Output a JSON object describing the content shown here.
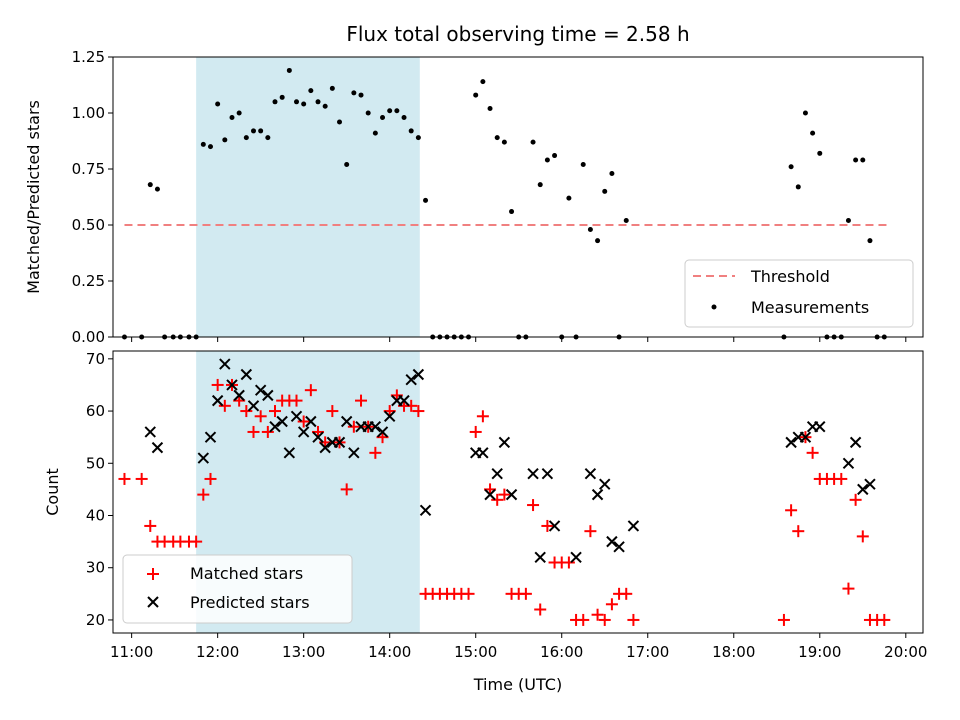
{
  "chart_data": [
    {
      "type": "scatter",
      "title": "Flux total observing time = 2.58 h",
      "ylabel": "Matched/Predicted stars",
      "xlabel": "",
      "xlim": [
        "10:47",
        "20:12"
      ],
      "ylim": [
        0,
        1.25
      ],
      "yticks": [
        0.0,
        0.25,
        0.5,
        0.75,
        1.0,
        1.25
      ],
      "ytick_labels": [
        "0.00",
        "0.25",
        "0.50",
        "0.75",
        "1.00",
        "1.25"
      ],
      "shaded_interval": [
        "11:45",
        "14:21"
      ],
      "shade_color": "#add8e6",
      "legend_position": "lower right",
      "threshold": {
        "name": "Threshold",
        "value": 0.5,
        "x_range": [
          "10:55",
          "19:47"
        ],
        "color": "#f08080",
        "style": "dashed"
      },
      "series": [
        {
          "name": "Measurements",
          "color": "#000000",
          "marker": "dot",
          "points": [
            [
              "10:55",
              0
            ],
            [
              "11:07",
              0
            ],
            [
              "11:13",
              0.68
            ],
            [
              "11:18",
              0.66
            ],
            [
              "11:23",
              0
            ],
            [
              "11:29",
              0
            ],
            [
              "11:34",
              0
            ],
            [
              "11:40",
              0
            ],
            [
              "11:45",
              0
            ],
            [
              "11:50",
              0.86
            ],
            [
              "11:55",
              0.85
            ],
            [
              "12:00",
              1.04
            ],
            [
              "12:05",
              0.88
            ],
            [
              "12:10",
              0.98
            ],
            [
              "12:15",
              1.0
            ],
            [
              "12:20",
              0.89
            ],
            [
              "12:25",
              0.92
            ],
            [
              "12:30",
              0.92
            ],
            [
              "12:35",
              0.89
            ],
            [
              "12:40",
              1.05
            ],
            [
              "12:45",
              1.07
            ],
            [
              "12:50",
              1.19
            ],
            [
              "12:55",
              1.05
            ],
            [
              "13:00",
              1.04
            ],
            [
              "13:05",
              1.1
            ],
            [
              "13:10",
              1.05
            ],
            [
              "13:15",
              1.03
            ],
            [
              "13:20",
              1.11
            ],
            [
              "13:25",
              0.96
            ],
            [
              "13:30",
              0.77
            ],
            [
              "13:35",
              1.09
            ],
            [
              "13:40",
              1.08
            ],
            [
              "13:45",
              1.0
            ],
            [
              "13:50",
              0.91
            ],
            [
              "13:55",
              0.98
            ],
            [
              "14:00",
              1.01
            ],
            [
              "14:05",
              1.01
            ],
            [
              "14:10",
              0.98
            ],
            [
              "14:15",
              0.92
            ],
            [
              "14:20",
              0.89
            ],
            [
              "14:25",
              0.61
            ],
            [
              "14:30",
              0
            ],
            [
              "14:35",
              0
            ],
            [
              "14:40",
              0
            ],
            [
              "14:45",
              0
            ],
            [
              "14:50",
              0
            ],
            [
              "14:55",
              0
            ],
            [
              "15:00",
              1.08
            ],
            [
              "15:05",
              1.14
            ],
            [
              "15:10",
              1.02
            ],
            [
              "15:15",
              0.89
            ],
            [
              "15:20",
              0.87
            ],
            [
              "15:25",
              0.56
            ],
            [
              "15:30",
              0
            ],
            [
              "15:35",
              0
            ],
            [
              "15:40",
              0.87
            ],
            [
              "15:45",
              0.68
            ],
            [
              "15:50",
              0.79
            ],
            [
              "15:55",
              0.81
            ],
            [
              "16:00",
              0
            ],
            [
              "16:05",
              0.62
            ],
            [
              "16:10",
              0
            ],
            [
              "16:15",
              0.77
            ],
            [
              "16:20",
              0.48
            ],
            [
              "16:25",
              0.43
            ],
            [
              "16:30",
              0.65
            ],
            [
              "16:35",
              0.73
            ],
            [
              "16:40",
              0
            ],
            [
              "16:45",
              0.52
            ],
            [
              "18:35",
              0
            ],
            [
              "18:40",
              0.76
            ],
            [
              "18:45",
              0.67
            ],
            [
              "18:50",
              1.0
            ],
            [
              "18:55",
              0.91
            ],
            [
              "19:00",
              0.82
            ],
            [
              "19:05",
              0
            ],
            [
              "19:10",
              0
            ],
            [
              "19:15",
              0
            ],
            [
              "19:20",
              0.52
            ],
            [
              "19:25",
              0.79
            ],
            [
              "19:30",
              0.79
            ],
            [
              "19:35",
              0.43
            ],
            [
              "19:40",
              0
            ],
            [
              "19:45",
              0
            ]
          ]
        }
      ],
      "x_tick_labels": []
    },
    {
      "type": "scatter",
      "title": "",
      "ylabel": "Count",
      "xlabel": "Time (UTC)",
      "xlim": [
        "10:47",
        "20:12"
      ],
      "ylim": [
        17.5,
        71.5
      ],
      "yticks": [
        20,
        30,
        40,
        50,
        60,
        70
      ],
      "ytick_labels": [
        "20",
        "30",
        "40",
        "50",
        "60",
        "70"
      ],
      "x_ticks": [
        "11:00",
        "12:00",
        "13:00",
        "14:00",
        "15:00",
        "16:00",
        "17:00",
        "18:00",
        "19:00",
        "20:00"
      ],
      "x_tick_labels": [
        "11:00",
        "12:00",
        "13:00",
        "14:00",
        "15:00",
        "16:00",
        "17:00",
        "18:00",
        "19:00",
        "20:00"
      ],
      "shaded_interval": [
        "11:45",
        "14:21"
      ],
      "shade_color": "#add8e6",
      "legend_position": "lower left",
      "series": [
        {
          "name": "Matched stars",
          "color": "#ff0000",
          "marker": "plus",
          "points": [
            [
              "10:55",
              47
            ],
            [
              "11:07",
              47
            ],
            [
              "11:13",
              38
            ],
            [
              "11:18",
              35
            ],
            [
              "11:23",
              35
            ],
            [
              "11:29",
              35
            ],
            [
              "11:34",
              35
            ],
            [
              "11:40",
              35
            ],
            [
              "11:45",
              35
            ],
            [
              "11:50",
              44
            ],
            [
              "11:55",
              47
            ],
            [
              "12:00",
              65
            ],
            [
              "12:05",
              61
            ],
            [
              "12:10",
              65
            ],
            [
              "12:15",
              62
            ],
            [
              "12:20",
              60
            ],
            [
              "12:25",
              56
            ],
            [
              "12:30",
              59
            ],
            [
              "12:35",
              56
            ],
            [
              "12:40",
              60
            ],
            [
              "12:45",
              62
            ],
            [
              "12:50",
              62
            ],
            [
              "12:55",
              62
            ],
            [
              "13:00",
              58
            ],
            [
              "13:05",
              64
            ],
            [
              "13:10",
              56
            ],
            [
              "13:15",
              54
            ],
            [
              "13:20",
              60
            ],
            [
              "13:25",
              54
            ],
            [
              "13:30",
              45
            ],
            [
              "13:35",
              57
            ],
            [
              "13:40",
              62
            ],
            [
              "13:45",
              57
            ],
            [
              "13:50",
              52
            ],
            [
              "13:55",
              55
            ],
            [
              "14:00",
              60
            ],
            [
              "14:05",
              63
            ],
            [
              "14:10",
              61
            ],
            [
              "14:15",
              61
            ],
            [
              "14:20",
              60
            ],
            [
              "14:25",
              25
            ],
            [
              "14:30",
              25
            ],
            [
              "14:35",
              25
            ],
            [
              "14:40",
              25
            ],
            [
              "14:45",
              25
            ],
            [
              "14:50",
              25
            ],
            [
              "14:55",
              25
            ],
            [
              "15:00",
              56
            ],
            [
              "15:05",
              59
            ],
            [
              "15:10",
              45
            ],
            [
              "15:15",
              43
            ],
            [
              "15:20",
              44
            ],
            [
              "15:25",
              25
            ],
            [
              "15:30",
              25
            ],
            [
              "15:35",
              25
            ],
            [
              "15:40",
              42
            ],
            [
              "15:45",
              22
            ],
            [
              "15:50",
              38
            ],
            [
              "15:55",
              31
            ],
            [
              "16:00",
              31
            ],
            [
              "16:05",
              31
            ],
            [
              "16:10",
              20
            ],
            [
              "16:15",
              20
            ],
            [
              "16:20",
              37
            ],
            [
              "16:25",
              21
            ],
            [
              "16:30",
              20
            ],
            [
              "16:35",
              23
            ],
            [
              "16:40",
              25
            ],
            [
              "16:45",
              25
            ],
            [
              "16:50",
              20
            ],
            [
              "18:35",
              20
            ],
            [
              "18:40",
              41
            ],
            [
              "18:45",
              37
            ],
            [
              "18:50",
              55
            ],
            [
              "18:55",
              52
            ],
            [
              "19:00",
              47
            ],
            [
              "19:05",
              47
            ],
            [
              "19:10",
              47
            ],
            [
              "19:15",
              47
            ],
            [
              "19:20",
              26
            ],
            [
              "19:25",
              43
            ],
            [
              "19:30",
              36
            ],
            [
              "19:35",
              20
            ],
            [
              "19:40",
              20
            ],
            [
              "19:45",
              20
            ]
          ]
        },
        {
          "name": "Predicted stars",
          "color": "#000000",
          "marker": "x",
          "points": [
            [
              "11:13",
              56
            ],
            [
              "11:18",
              53
            ],
            [
              "11:50",
              51
            ],
            [
              "11:55",
              55
            ],
            [
              "12:00",
              62
            ],
            [
              "12:05",
              69
            ],
            [
              "12:10",
              65
            ],
            [
              "12:15",
              63
            ],
            [
              "12:20",
              67
            ],
            [
              "12:25",
              61
            ],
            [
              "12:30",
              64
            ],
            [
              "12:35",
              63
            ],
            [
              "12:40",
              57
            ],
            [
              "12:45",
              58
            ],
            [
              "12:50",
              52
            ],
            [
              "12:55",
              59
            ],
            [
              "13:00",
              56
            ],
            [
              "13:05",
              58
            ],
            [
              "13:10",
              55
            ],
            [
              "13:15",
              53
            ],
            [
              "13:20",
              54
            ],
            [
              "13:25",
              54
            ],
            [
              "13:30",
              58
            ],
            [
              "13:35",
              52
            ],
            [
              "13:40",
              57
            ],
            [
              "13:45",
              57
            ],
            [
              "13:50",
              57
            ],
            [
              "13:55",
              56
            ],
            [
              "14:00",
              59
            ],
            [
              "14:05",
              62
            ],
            [
              "14:10",
              62
            ],
            [
              "14:15",
              66
            ],
            [
              "14:20",
              67
            ],
            [
              "14:25",
              41
            ],
            [
              "15:00",
              52
            ],
            [
              "15:05",
              52
            ],
            [
              "15:10",
              44
            ],
            [
              "15:15",
              48
            ],
            [
              "15:20",
              54
            ],
            [
              "15:25",
              44
            ],
            [
              "15:40",
              48
            ],
            [
              "15:45",
              32
            ],
            [
              "15:50",
              48
            ],
            [
              "15:55",
              38
            ],
            [
              "16:10",
              32
            ],
            [
              "16:20",
              48
            ],
            [
              "16:25",
              44
            ],
            [
              "16:30",
              46
            ],
            [
              "16:35",
              35
            ],
            [
              "16:40",
              34
            ],
            [
              "16:50",
              38
            ],
            [
              "18:40",
              54
            ],
            [
              "18:45",
              55
            ],
            [
              "18:50",
              55
            ],
            [
              "18:55",
              57
            ],
            [
              "19:00",
              57
            ],
            [
              "19:20",
              50
            ],
            [
              "19:25",
              54
            ],
            [
              "19:30",
              45
            ],
            [
              "19:35",
              46
            ]
          ]
        }
      ]
    }
  ]
}
